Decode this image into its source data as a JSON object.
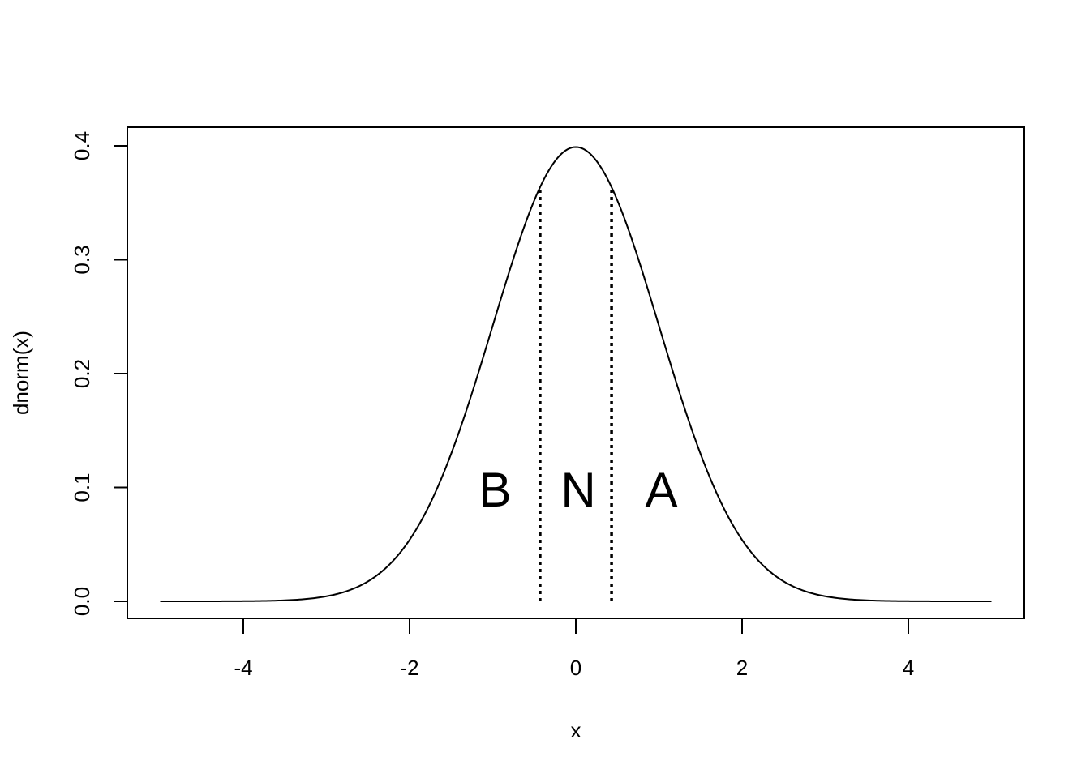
{
  "chart_data": {
    "type": "line",
    "title": "",
    "xlabel": "x",
    "ylabel": "dnorm(x)",
    "xlim": [
      -5,
      5
    ],
    "ylim": [
      0,
      0.4
    ],
    "x_ticks": [
      "-4",
      "-2",
      "0",
      "2",
      "4"
    ],
    "y_ticks": [
      "0.0",
      "0.1",
      "0.2",
      "0.3",
      "0.4"
    ],
    "grid": false,
    "legend": "none",
    "series": [
      {
        "function": "standard normal density",
        "x": [
          -5,
          -4.5,
          -4,
          -3.5,
          -3,
          -2.5,
          -2,
          -1.5,
          -1,
          -0.5,
          0,
          0.5,
          1,
          1.5,
          2,
          2.5,
          3,
          3.5,
          4,
          4.5,
          5
        ],
        "y": [
          1.5e-06,
          1.6e-05,
          0.000134,
          0.000873,
          0.00443,
          0.0175,
          0.054,
          0.1295,
          0.242,
          0.3521,
          0.3989,
          0.3521,
          0.242,
          0.1295,
          0.054,
          0.0175,
          0.00443,
          0.000873,
          0.000134,
          1.6e-05,
          1.5e-06
        ]
      }
    ],
    "vlines": [
      {
        "x": -0.43,
        "y_from": 0,
        "y_to": 0.364,
        "style": "dotted"
      },
      {
        "x": 0.43,
        "y_from": 0,
        "y_to": 0.364,
        "style": "dotted"
      }
    ],
    "annotations": [
      {
        "text": "B",
        "x": -1.0,
        "y": 0.1
      },
      {
        "text": "N",
        "x": 0.0,
        "y": 0.1
      },
      {
        "text": "A",
        "x": 1.0,
        "y": 0.1
      }
    ]
  }
}
